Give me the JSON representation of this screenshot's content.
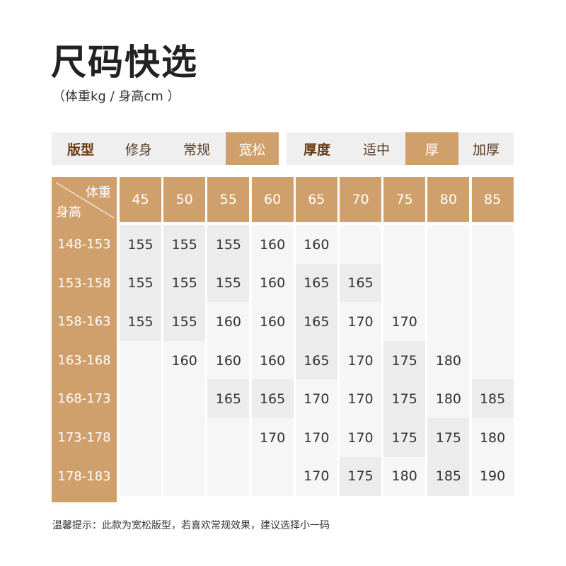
{
  "title": "尺码快选",
  "subtitle": "（体重kg / 身高cm ）",
  "fit": {
    "label": "版型",
    "options": [
      "修身",
      "常规",
      "宽松"
    ],
    "selected": "宽松"
  },
  "thickness": {
    "label": "厚度",
    "options": [
      "适中",
      "厚",
      "加厚"
    ],
    "selected": "厚"
  },
  "table": {
    "corner_top": "体重",
    "corner_bottom": "身高",
    "weights": [
      "45",
      "50",
      "55",
      "60",
      "65",
      "70",
      "75",
      "80",
      "85"
    ],
    "heights": [
      "148-153",
      "153-158",
      "158-163",
      "163-168",
      "168-173",
      "173-178",
      "178-183"
    ],
    "rows": [
      [
        "155",
        "155",
        "155",
        "160",
        "160",
        "",
        "",
        "",
        ""
      ],
      [
        "155",
        "155",
        "155",
        "160",
        "165",
        "165",
        "",
        "",
        ""
      ],
      [
        "155",
        "155",
        "160",
        "160",
        "165",
        "170",
        "170",
        "",
        ""
      ],
      [
        "",
        "160",
        "160",
        "160",
        "165",
        "170",
        "175",
        "180",
        ""
      ],
      [
        "",
        "",
        "165",
        "165",
        "170",
        "170",
        "175",
        "180",
        "185"
      ],
      [
        "",
        "",
        "",
        "170",
        "170",
        "170",
        "175",
        "175",
        "180"
      ],
      [
        "",
        "",
        "",
        "",
        "170",
        "175",
        "180",
        "185",
        "190"
      ]
    ]
  },
  "note": "温馨提示：此款为宽松版型，若喜欢常规效果，建议选择小一码",
  "colors": {
    "accent": "#d0a06c",
    "label": "#6b3a10",
    "shade_dark": "#ececec",
    "shade_light": "#f6f6f6"
  }
}
